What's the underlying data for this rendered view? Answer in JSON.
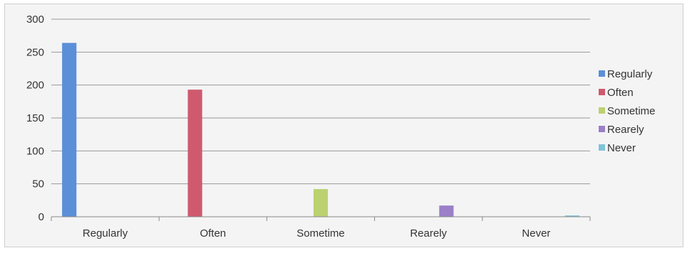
{
  "chart_data": {
    "type": "bar",
    "categories": [
      "Regularly",
      "Often",
      "Sometime",
      "Rearely",
      "Never"
    ],
    "series": [
      {
        "name": "Regularly",
        "color": "#5b8fd8",
        "values": [
          264,
          null,
          null,
          null,
          null
        ]
      },
      {
        "name": "Often",
        "color": "#cf5a6e",
        "values": [
          null,
          193,
          null,
          null,
          null
        ]
      },
      {
        "name": "Sometime",
        "color": "#bcd170",
        "values": [
          null,
          null,
          42,
          null,
          null
        ]
      },
      {
        "name": "Rearely",
        "color": "#9b7fc8",
        "values": [
          null,
          null,
          null,
          17,
          null
        ]
      },
      {
        "name": "Never",
        "color": "#7fc4d8",
        "values": [
          null,
          null,
          null,
          null,
          2
        ]
      }
    ],
    "ylim": [
      0,
      300
    ],
    "yticks": [
      0,
      50,
      100,
      150,
      200,
      250,
      300
    ],
    "grid": true,
    "legend_position": "right",
    "gridline_color": "#999999",
    "axis_color": "#888888"
  }
}
